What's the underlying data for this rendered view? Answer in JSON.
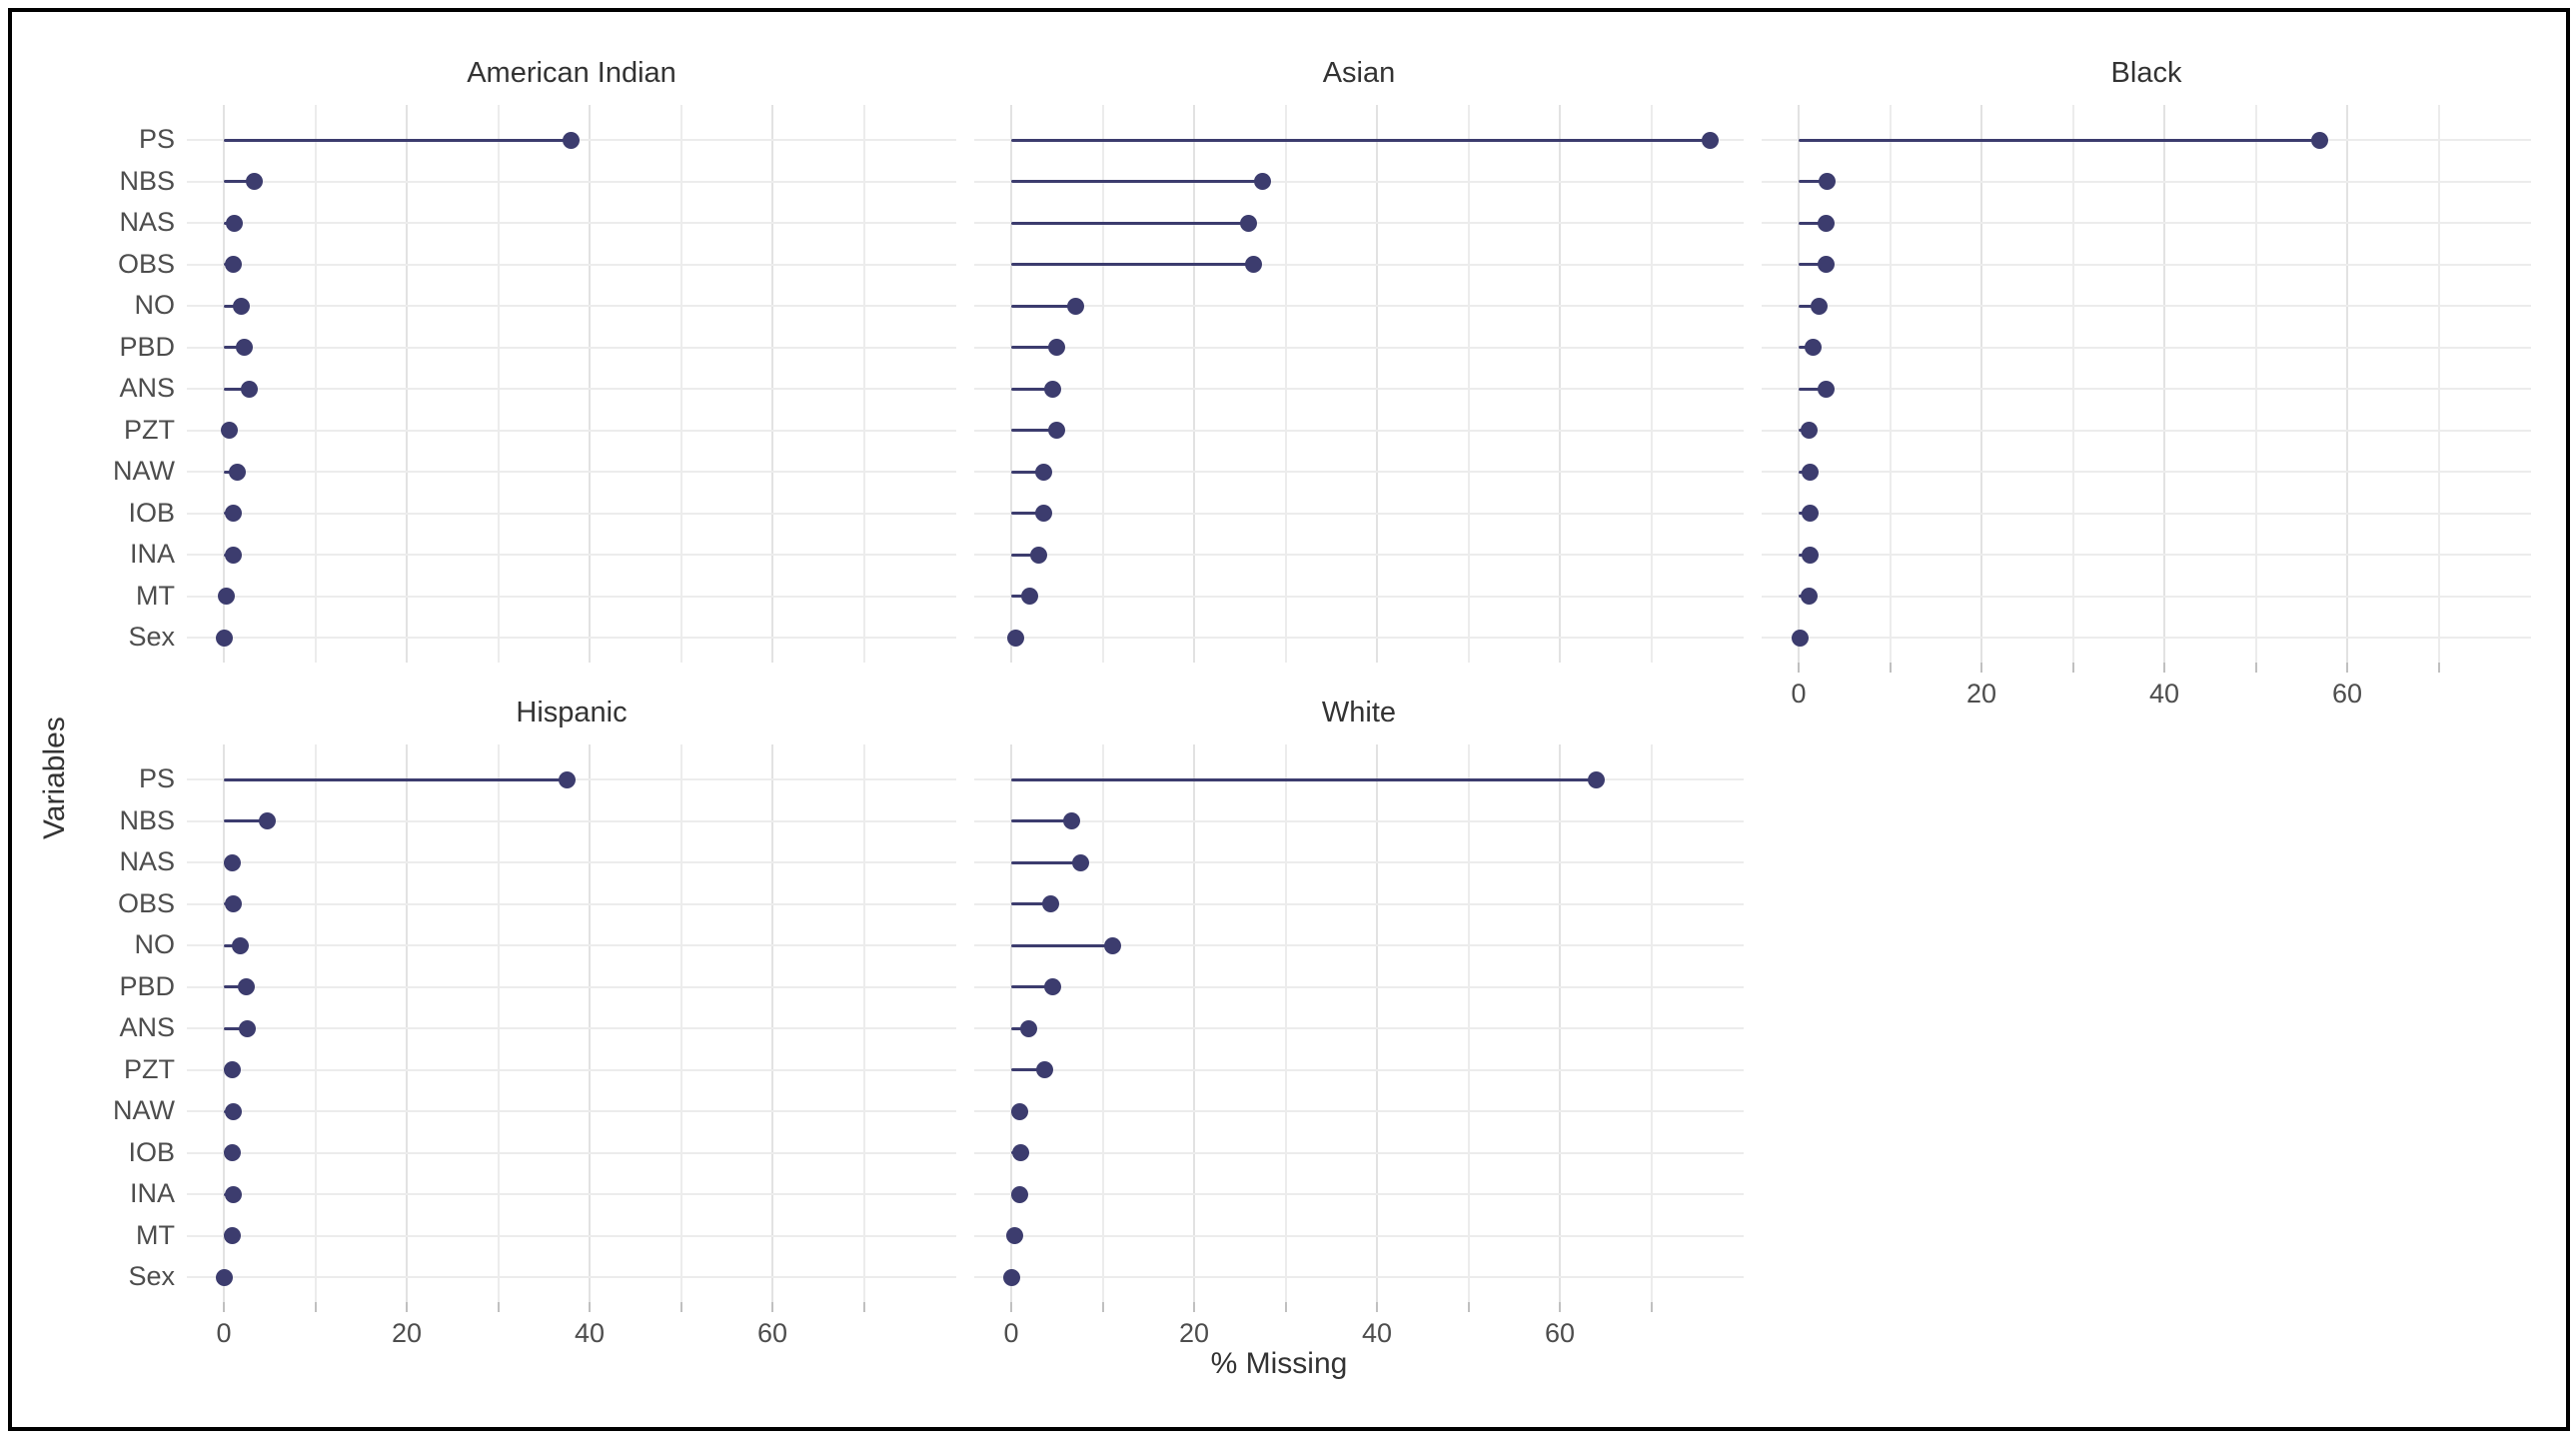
{
  "chart_data": {
    "type": "lollipop",
    "title": "",
    "xlabel": "% Missing",
    "ylabel": "Variables",
    "facet_layout": "2 rows x 3 columns, bottom-right slot empty",
    "variables": [
      "PS",
      "NBS",
      "NAS",
      "OBS",
      "NO",
      "PBD",
      "ANS",
      "PZT",
      "NAW",
      "IOB",
      "INA",
      "MT",
      "Sex"
    ],
    "x_breaks": [
      0,
      20,
      40,
      60
    ],
    "x_minor_gridlines": [
      0,
      10,
      20,
      30,
      40,
      50,
      60,
      70
    ],
    "xlim": [
      -4,
      80
    ],
    "grid": "on",
    "legend": "none",
    "facets": [
      {
        "label": "American Indian",
        "grid_row": 0,
        "grid_col": 0,
        "show_x_axis": false,
        "show_y_labels": true,
        "values": [
          38,
          3.3,
          1.2,
          1.0,
          1.9,
          2.2,
          2.8,
          0.6,
          1.5,
          1.0,
          1.0,
          0.3,
          0.1
        ]
      },
      {
        "label": "Asian",
        "grid_row": 0,
        "grid_col": 1,
        "show_x_axis": false,
        "show_y_labels": false,
        "values": [
          76.5,
          27.5,
          26.0,
          26.5,
          7.0,
          5.0,
          4.5,
          5.0,
          3.5,
          3.5,
          3.0,
          2.0,
          0.5
        ]
      },
      {
        "label": "Black",
        "grid_row": 0,
        "grid_col": 2,
        "show_x_axis": true,
        "show_y_labels": false,
        "values": [
          57,
          3.1,
          3.0,
          3.0,
          2.2,
          1.6,
          3.0,
          1.1,
          1.3,
          1.3,
          1.3,
          1.1,
          0.2
        ]
      },
      {
        "label": "Hispanic",
        "grid_row": 1,
        "grid_col": 0,
        "show_x_axis": true,
        "show_y_labels": true,
        "values": [
          37.5,
          4.8,
          0.9,
          1.0,
          1.8,
          2.5,
          2.6,
          0.9,
          1.0,
          0.9,
          1.0,
          0.9,
          0.1
        ]
      },
      {
        "label": "White",
        "grid_row": 1,
        "grid_col": 1,
        "show_x_axis": true,
        "show_y_labels": false,
        "values": [
          64,
          6.6,
          7.6,
          4.3,
          11.1,
          4.5,
          1.9,
          3.7,
          0.9,
          1.0,
          0.9,
          0.4,
          0.1
        ]
      }
    ],
    "colors": {
      "point": "#3c3c6e",
      "stem": "#3c3c6e",
      "gridline_major": "#e2e2e2",
      "gridline_minor": "#ececec",
      "tick": "#c0c0c0",
      "axis_text": "#4d4d4d",
      "title_text": "#333333",
      "background": "#ffffff",
      "border": "#000000"
    }
  }
}
